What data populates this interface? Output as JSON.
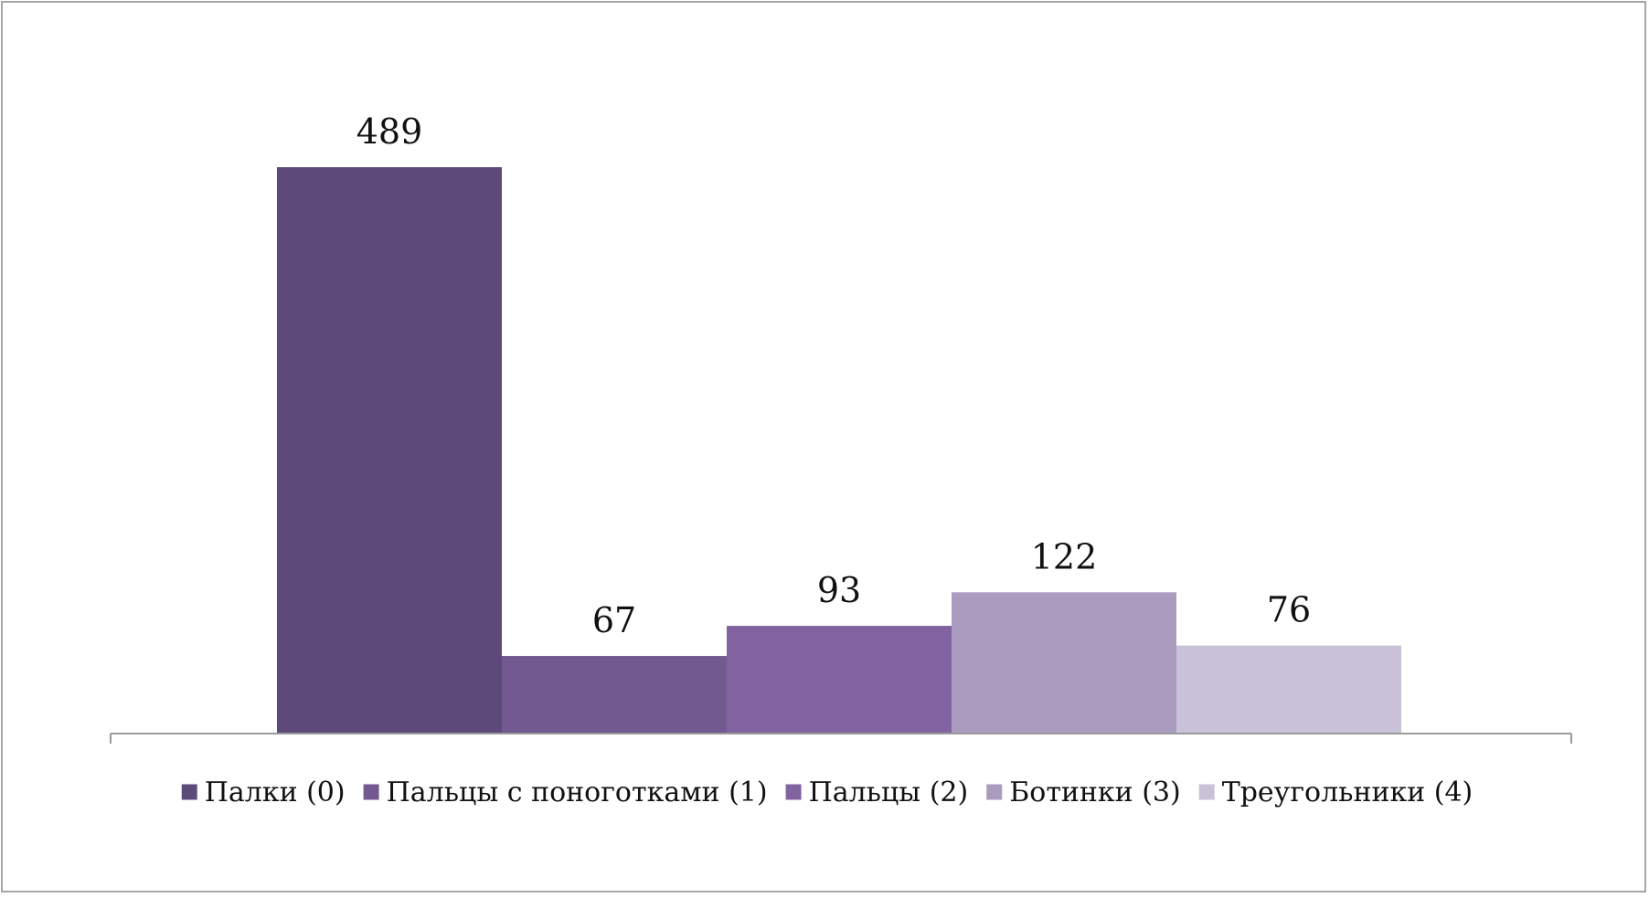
{
  "chart_data": {
    "type": "bar",
    "title": "",
    "xlabel": "",
    "ylabel": "",
    "ylim": [
      0,
      489
    ],
    "grid": false,
    "legend_position": "bottom",
    "data_labels": true,
    "series": [
      {
        "name": "Палки (0)",
        "value": 489,
        "color": "#5e4a7a"
      },
      {
        "name": "Пальцы с поноготками (1)",
        "value": 67,
        "color": "#725a91"
      },
      {
        "name": "Пальцы (2)",
        "value": 93,
        "color": "#8163a1"
      },
      {
        "name": "Ботинки (3)",
        "value": 122,
        "color": "#aa9bbf"
      },
      {
        "name": "Треугольники (4)",
        "value": 76,
        "color": "#c8c1d7"
      }
    ]
  }
}
